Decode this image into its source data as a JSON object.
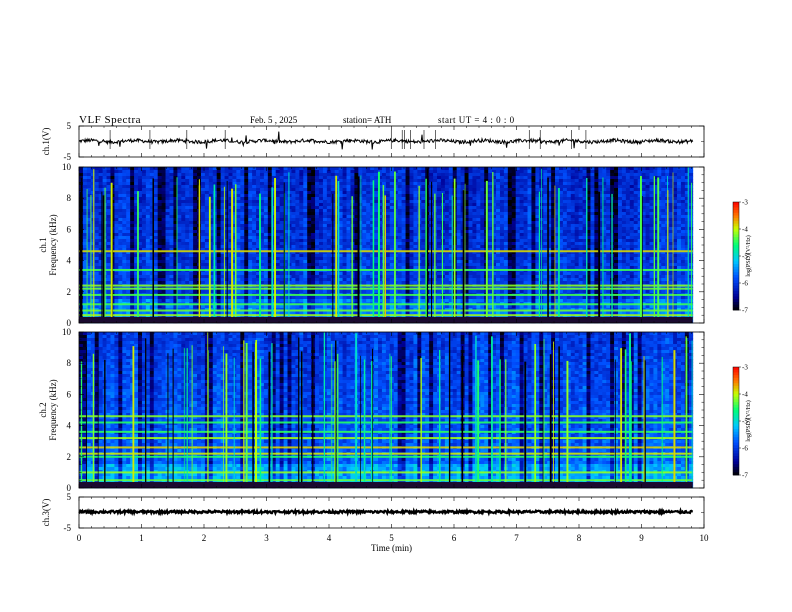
{
  "header": {
    "title": "VLF  Spectra",
    "date": "Feb. 5  , 2025",
    "station": "station= ATH",
    "start_ut": "start  UT  =   4  : 0   : 0"
  },
  "chart_data": [
    {
      "type": "line",
      "ylabel": "ch.1(V)",
      "ylim": [
        -5,
        5
      ],
      "yticks": [
        "5",
        "-5"
      ],
      "xlim": [
        0,
        10
      ]
    },
    {
      "type": "heatmap",
      "channel_label": "ch.1",
      "ylabel": "Frequency  (kHz)",
      "ylim": [
        0,
        10
      ],
      "yticks": [
        "0",
        "2",
        "4",
        "6",
        "8",
        "10"
      ],
      "xlim": [
        0,
        10
      ],
      "colorbar": {
        "label": "log(PSD)(V²/Hz)",
        "ticks": [
          "-3",
          "-4",
          "-5",
          "-6",
          "-7"
        ],
        "range": [
          -7,
          -3
        ]
      },
      "bands_khz": [
        0.3,
        0.5,
        0.8,
        1.2,
        1.8,
        2.2,
        2.4,
        3.4,
        4.6
      ]
    },
    {
      "type": "heatmap",
      "channel_label": "ch.2",
      "ylabel": "Frequency  (kHz)",
      "ylim": [
        0,
        10
      ],
      "yticks": [
        "0",
        "2",
        "4",
        "6",
        "8",
        "10"
      ],
      "xlim": [
        0,
        10
      ],
      "colorbar": {
        "label": "log(PSD)(V²/Hz)",
        "ticks": [
          "-3",
          "-4",
          "-5",
          "-6",
          "-7"
        ],
        "range": [
          -7,
          -3
        ]
      },
      "bands_khz": [
        0.5,
        1.0,
        2.0,
        2.2,
        2.6,
        3.2,
        3.6,
        4.2,
        4.6
      ]
    },
    {
      "type": "line",
      "ylabel": "ch.3(V)",
      "ylim": [
        -5,
        5
      ],
      "yticks": [
        "5",
        "-5"
      ],
      "xlim": [
        0,
        10
      ],
      "xlabel": "Time  (min)",
      "xticks": [
        "0",
        "1",
        "2",
        "3",
        "4",
        "5",
        "6",
        "7",
        "8",
        "9",
        "10"
      ]
    }
  ],
  "colors": {
    "axis": "#000000",
    "trace": "#000000"
  }
}
